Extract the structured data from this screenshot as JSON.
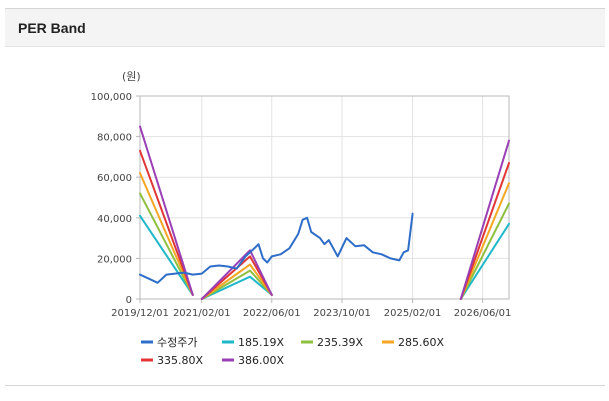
{
  "panel": {
    "title": "PER Band"
  },
  "chart_data": {
    "type": "line",
    "title": "PER Band",
    "unit_label": "(원)",
    "ylim": [
      0,
      100000
    ],
    "y_ticks": [
      "0",
      "20,000",
      "40,000",
      "60,000",
      "80,000",
      "100,000"
    ],
    "x_ticks": [
      "2019/12/01",
      "2021/02/01",
      "2022/06/01",
      "2023/10/01",
      "2025/02/01",
      "2026/06/01"
    ],
    "grid": true,
    "legend_position": "bottom",
    "series": [
      {
        "name": "수정주가",
        "color": "#2f6ec8",
        "points": [
          [
            "2019/12/01",
            12000
          ],
          [
            "2020/02/01",
            10000
          ],
          [
            "2020/04/01",
            8000
          ],
          [
            "2020/06/01",
            12000
          ],
          [
            "2020/08/01",
            12500
          ],
          [
            "2020/10/01",
            13000
          ],
          [
            "2020/12/01",
            12000
          ],
          [
            "2021/02/01",
            12500
          ],
          [
            "2021/04/01",
            16000
          ],
          [
            "2021/06/01",
            16500
          ],
          [
            "2021/08/01",
            16000
          ],
          [
            "2021/10/01",
            15000
          ],
          [
            "2021/12/01",
            21000
          ],
          [
            "2022/02/01",
            25000
          ],
          [
            "2022/03/01",
            27000
          ],
          [
            "2022/04/01",
            20000
          ],
          [
            "2022/05/01",
            18000
          ],
          [
            "2022/06/01",
            21000
          ],
          [
            "2022/08/01",
            22000
          ],
          [
            "2022/10/01",
            25000
          ],
          [
            "2022/12/01",
            32000
          ],
          [
            "2023/01/01",
            39000
          ],
          [
            "2023/02/01",
            40000
          ],
          [
            "2023/03/01",
            33000
          ],
          [
            "2023/05/01",
            30000
          ],
          [
            "2023/06/01",
            27000
          ],
          [
            "2023/07/01",
            29000
          ],
          [
            "2023/09/01",
            21000
          ],
          [
            "2023/11/01",
            30000
          ],
          [
            "2024/01/01",
            26000
          ],
          [
            "2024/03/01",
            26500
          ],
          [
            "2024/05/01",
            23000
          ],
          [
            "2024/07/01",
            22000
          ],
          [
            "2024/09/01",
            20000
          ],
          [
            "2024/11/01",
            19000
          ],
          [
            "2024/12/01",
            23000
          ],
          [
            "2025/01/01",
            24000
          ],
          [
            "2025/02/01",
            42000
          ]
        ]
      },
      {
        "name": "185.19X",
        "color": "#1fb8c9",
        "points": [
          [
            "2019/12/01",
            41000
          ],
          [
            "2020/12/01",
            2000
          ],
          null,
          [
            "2021/02/01",
            0
          ],
          [
            "2022/01/01",
            11000
          ],
          [
            "2022/06/01",
            2000
          ],
          null,
          [
            "2026/01/01",
            0
          ],
          [
            "2026/12/01",
            37000
          ]
        ]
      },
      {
        "name": "235.39X",
        "color": "#8ebf3f",
        "points": [
          [
            "2019/12/01",
            52000
          ],
          [
            "2020/12/01",
            2000
          ],
          null,
          [
            "2021/02/01",
            0
          ],
          [
            "2022/01/01",
            14000
          ],
          [
            "2022/06/01",
            2000
          ],
          null,
          [
            "2026/01/01",
            0
          ],
          [
            "2026/12/01",
            47000
          ]
        ]
      },
      {
        "name": "285.60X",
        "color": "#f5a623",
        "points": [
          [
            "2019/12/01",
            62000
          ],
          [
            "2020/12/01",
            2000
          ],
          null,
          [
            "2021/02/01",
            0
          ],
          [
            "2022/01/01",
            17000
          ],
          [
            "2022/06/01",
            2000
          ],
          null,
          [
            "2026/01/01",
            0
          ],
          [
            "2026/12/01",
            57000
          ]
        ]
      },
      {
        "name": "335.80X",
        "color": "#e23636",
        "points": [
          [
            "2019/12/01",
            73000
          ],
          [
            "2020/12/01",
            2000
          ],
          null,
          [
            "2021/02/01",
            0
          ],
          [
            "2022/01/01",
            21000
          ],
          [
            "2022/06/01",
            2000
          ],
          null,
          [
            "2026/01/01",
            0
          ],
          [
            "2026/12/01",
            67000
          ]
        ]
      },
      {
        "name": "386.00X",
        "color": "#9b3fb5",
        "points": [
          [
            "2019/12/01",
            85000
          ],
          [
            "2020/12/01",
            2000
          ],
          null,
          [
            "2021/02/01",
            0
          ],
          [
            "2022/01/01",
            24000
          ],
          [
            "2022/06/01",
            2000
          ],
          null,
          [
            "2026/01/01",
            0
          ],
          [
            "2026/12/01",
            78000
          ]
        ]
      }
    ]
  }
}
